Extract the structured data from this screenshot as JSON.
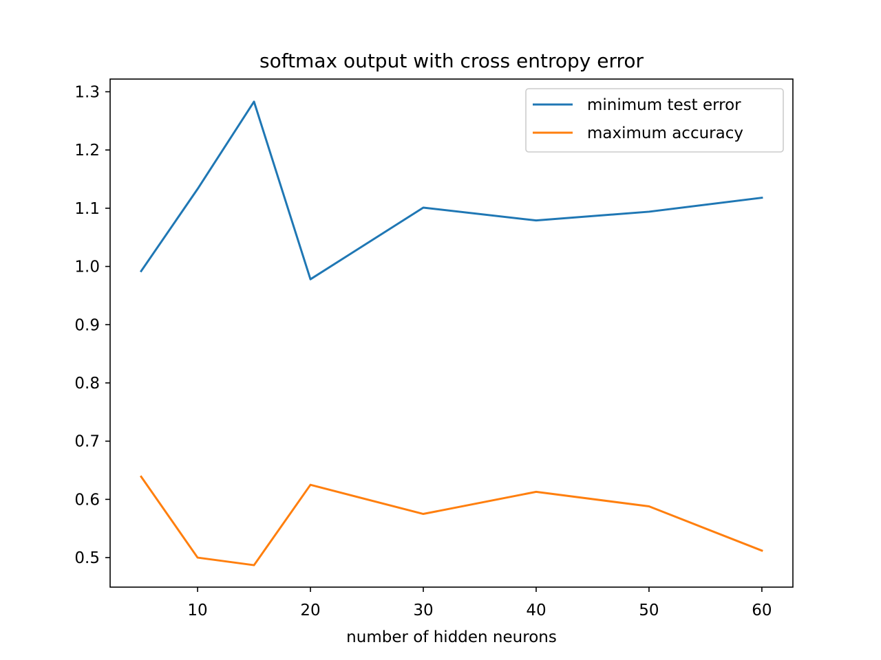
{
  "chart_data": {
    "type": "line",
    "title": "softmax output with cross entropy error",
    "xlabel": "number of hidden neurons",
    "ylabel": "",
    "x": [
      5,
      10,
      15,
      20,
      30,
      40,
      50,
      60
    ],
    "xlim": [
      2.25,
      62.75
    ],
    "ylim": [
      0.4493,
      1.3218
    ],
    "xticks": [
      10,
      20,
      30,
      40,
      50,
      60
    ],
    "yticks": [
      0.5,
      0.6,
      0.7,
      0.8,
      0.9,
      1.0,
      1.1,
      1.2,
      1.3
    ],
    "ytick_labels": [
      "0.5",
      "0.6",
      "0.7",
      "0.8",
      "0.9",
      "1.0",
      "1.1",
      "1.2",
      "1.3"
    ],
    "grid": false,
    "legend_position": "top-right",
    "series": [
      {
        "name": "minimum test error",
        "color": "#1f77b4",
        "values": [
          0.992,
          1.133,
          1.283,
          0.978,
          1.101,
          1.079,
          1.094,
          1.118
        ]
      },
      {
        "name": "maximum accuracy",
        "color": "#ff7f0e",
        "values": [
          0.639,
          0.5,
          0.487,
          0.625,
          0.575,
          0.613,
          0.588,
          0.512
        ]
      }
    ]
  }
}
